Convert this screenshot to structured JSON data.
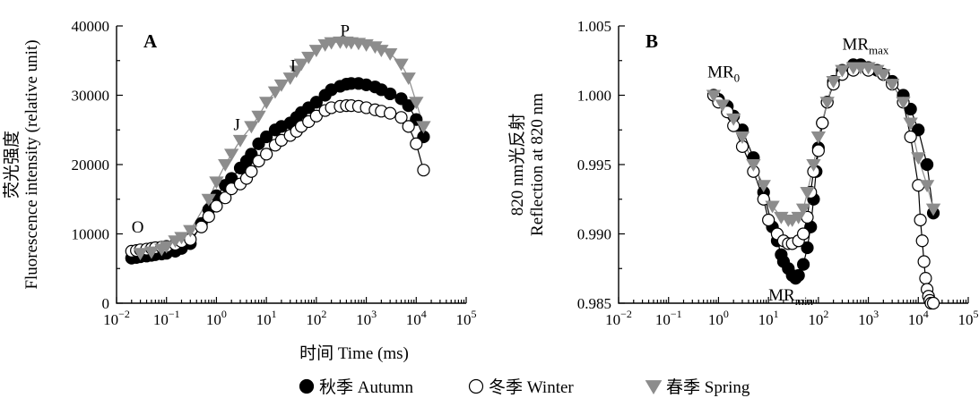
{
  "chart_data": [
    {
      "type": "scatter",
      "panel_label": "A",
      "xlabel": "时间 Time (ms)",
      "ylabel_lines": [
        "荧光强度",
        "Fluorescence intensity (relative unit)"
      ],
      "x_scale": "log",
      "xlim": [
        0.01,
        100000
      ],
      "ylim": [
        0,
        40000
      ],
      "x_ticks": [
        {
          "base": "10",
          "exp": "−2"
        },
        {
          "base": "10",
          "exp": "−1"
        },
        {
          "base": "10",
          "exp": "0"
        },
        {
          "base": "10",
          "exp": "1"
        },
        {
          "base": "10",
          "exp": "2"
        },
        {
          "base": "10",
          "exp": "3"
        },
        {
          "base": "10",
          "exp": "4"
        },
        {
          "base": "10",
          "exp": "5"
        }
      ],
      "y_ticks": [
        "0",
        "10000",
        "20000",
        "30000",
        "40000"
      ],
      "annotations": [
        {
          "text": "O",
          "x": 0.02,
          "y": 10200
        },
        {
          "text": "J",
          "x": 2.2,
          "y": 25000
        },
        {
          "text": "I",
          "x": 30,
          "y": 33500
        },
        {
          "text": "P",
          "x": 300,
          "y": 38500
        }
      ],
      "series": [
        {
          "name": "秋季 Autumn",
          "marker": "filled-circle",
          "x": [
            0.02,
            0.025,
            0.03,
            0.04,
            0.05,
            0.06,
            0.08,
            0.1,
            0.15,
            0.2,
            0.3,
            0.5,
            0.7,
            1,
            1.5,
            2,
            3,
            4,
            5,
            7,
            10,
            15,
            20,
            30,
            40,
            50,
            70,
            100,
            150,
            200,
            300,
            400,
            500,
            700,
            1000,
            1500,
            2000,
            3000,
            5000,
            7000,
            10000,
            14000
          ],
          "y": [
            6500,
            6600,
            6700,
            6800,
            6900,
            7000,
            7100,
            7200,
            7500,
            7900,
            8600,
            11500,
            13500,
            15500,
            17000,
            18000,
            19500,
            20500,
            21500,
            23000,
            24000,
            25000,
            25500,
            26000,
            26800,
            27500,
            28200,
            29000,
            30000,
            30800,
            31300,
            31600,
            31700,
            31700,
            31500,
            31200,
            30800,
            30200,
            29500,
            28500,
            26500,
            24000
          ]
        },
        {
          "name": "冬季 Winter",
          "marker": "open-circle",
          "x": [
            0.02,
            0.025,
            0.03,
            0.04,
            0.05,
            0.06,
            0.08,
            0.1,
            0.15,
            0.2,
            0.3,
            0.5,
            0.7,
            1,
            1.5,
            2,
            3,
            4,
            5,
            7,
            10,
            15,
            20,
            30,
            40,
            50,
            70,
            100,
            150,
            200,
            300,
            400,
            500,
            700,
            1000,
            1500,
            2000,
            3000,
            5000,
            7000,
            10000,
            14000
          ],
          "y": [
            7500,
            7600,
            7700,
            7800,
            7900,
            8000,
            8100,
            8200,
            8500,
            8900,
            9200,
            11000,
            12500,
            14000,
            15200,
            16500,
            17200,
            18000,
            19000,
            20500,
            21500,
            22800,
            23500,
            24200,
            24800,
            25500,
            26200,
            27000,
            27800,
            28200,
            28400,
            28500,
            28500,
            28400,
            28200,
            27900,
            27700,
            27400,
            26800,
            25500,
            23000,
            19200
          ]
        },
        {
          "name": "春季 Spring",
          "marker": "filled-triangle-down",
          "x": [
            0.03,
            0.05,
            0.08,
            0.1,
            0.15,
            0.2,
            0.3,
            0.7,
            1,
            1.5,
            2,
            3,
            5,
            7,
            10,
            15,
            20,
            30,
            40,
            50,
            70,
            100,
            150,
            200,
            300,
            400,
            500,
            700,
            1000,
            1500,
            2000,
            3000,
            5000,
            7000,
            10000,
            14000
          ],
          "y": [
            7200,
            7400,
            7800,
            8200,
            9000,
            9500,
            10500,
            15000,
            17500,
            20000,
            21500,
            23500,
            25500,
            27000,
            29000,
            30500,
            31500,
            32500,
            33500,
            34500,
            35500,
            36500,
            37300,
            37600,
            37700,
            37700,
            37600,
            37500,
            37300,
            37000,
            36500,
            36000,
            34500,
            32500,
            29000,
            25500
          ]
        }
      ],
      "legend_position": "bottom-center"
    },
    {
      "type": "scatter",
      "panel_label": "B",
      "xlabel": "时间 Time (ms)",
      "ylabel_lines": [
        "820 nm光反射",
        "Reflection at 820 nm"
      ],
      "x_scale": "log",
      "xlim": [
        0.01,
        100000
      ],
      "ylim": [
        0.985,
        1.005
      ],
      "x_ticks": [
        {
          "base": "10",
          "exp": "−2"
        },
        {
          "base": "10",
          "exp": "−1"
        },
        {
          "base": "10",
          "exp": "0"
        },
        {
          "base": "10",
          "exp": "1"
        },
        {
          "base": "10",
          "exp": "2"
        },
        {
          "base": "10",
          "exp": "3"
        },
        {
          "base": "10",
          "exp": "4"
        },
        {
          "base": "10",
          "exp": "5"
        }
      ],
      "y_ticks": [
        "0.985",
        "0.990",
        "0.995",
        "1.000",
        "1.005"
      ],
      "annotations": [
        {
          "base": "MR",
          "sub": "0",
          "x": 0.6,
          "y": 1.0013
        },
        {
          "base": "MR",
          "sub": "min",
          "x": 10,
          "y": 0.9852
        },
        {
          "base": "MR",
          "sub": "max",
          "x": 300,
          "y": 1.0033
        }
      ],
      "series": [
        {
          "name": "秋季 Autumn",
          "marker": "filled-circle",
          "x": [
            0.8,
            1,
            1.5,
            2,
            3,
            5,
            8,
            12,
            15,
            18,
            20,
            25,
            30,
            35,
            40,
            50,
            60,
            70,
            80,
            90,
            100,
            120,
            150,
            200,
            300,
            500,
            700,
            1000,
            1500,
            2000,
            3000,
            5000,
            7000,
            10000,
            15000,
            20000
          ],
          "y": [
            1.0,
            0.9997,
            0.9992,
            0.9985,
            0.9975,
            0.9955,
            0.993,
            0.9905,
            0.9895,
            0.9885,
            0.988,
            0.9875,
            0.987,
            0.9868,
            0.987,
            0.9878,
            0.989,
            0.9905,
            0.9925,
            0.9945,
            0.9962,
            0.998,
            0.9995,
            1.001,
            1.0018,
            1.0022,
            1.0022,
            1.002,
            1.0018,
            1.0015,
            1.001,
            1.0,
            0.999,
            0.9975,
            0.995,
            0.9915
          ]
        },
        {
          "name": "冬季 Winter",
          "marker": "open-circle",
          "x": [
            0.8,
            1,
            1.5,
            2,
            3,
            5,
            8,
            10,
            15,
            20,
            25,
            30,
            40,
            50,
            60,
            70,
            80,
            100,
            120,
            150,
            200,
            300,
            500,
            1000,
            2000,
            3000,
            5000,
            7000,
            10000,
            11000,
            12000,
            13000,
            14000,
            15000,
            16000,
            17000,
            18000,
            20000
          ],
          "y": [
            1.0,
            0.9995,
            0.9988,
            0.9978,
            0.9963,
            0.9945,
            0.9925,
            0.991,
            0.99,
            0.9895,
            0.9893,
            0.9893,
            0.9895,
            0.99,
            0.9912,
            0.993,
            0.9945,
            0.996,
            0.998,
            0.9995,
            1.0008,
            1.0015,
            1.0018,
            1.0018,
            1.0015,
            1.0008,
            0.9995,
            0.997,
            0.9935,
            0.991,
            0.9895,
            0.988,
            0.9868,
            0.986,
            0.9855,
            0.9852,
            0.985,
            0.985
          ]
        },
        {
          "name": "春季 Spring",
          "marker": "filled-triangle-down",
          "x": [
            0.8,
            1.2,
            2,
            3,
            5,
            8,
            12,
            18,
            25,
            30,
            40,
            50,
            60,
            80,
            100,
            150,
            200,
            300,
            500,
            700,
            1000,
            1500,
            2000,
            3000,
            5000,
            7000,
            10000,
            15000,
            20000
          ],
          "y": [
            1.0,
            0.9993,
            0.9983,
            0.997,
            0.995,
            0.9935,
            0.992,
            0.9912,
            0.991,
            0.991,
            0.9912,
            0.9918,
            0.993,
            0.995,
            0.997,
            0.9995,
            1.001,
            1.0018,
            1.002,
            1.002,
            1.002,
            1.0018,
            1.0015,
            1.0008,
            0.9995,
            0.998,
            0.9955,
            0.9935,
            0.9918
          ]
        }
      ]
    }
  ],
  "legend": [
    {
      "label": "秋季 Autumn",
      "marker": "filled-circle"
    },
    {
      "label": "冬季 Winter",
      "marker": "open-circle"
    },
    {
      "label": "春季 Spring",
      "marker": "filled-triangle-down"
    }
  ],
  "colors": {
    "autumn_fill": "#000000",
    "winter_fill": "#ffffff",
    "winter_stroke": "#000000",
    "spring_fill": "#8c8c8c",
    "axis": "#000000"
  }
}
